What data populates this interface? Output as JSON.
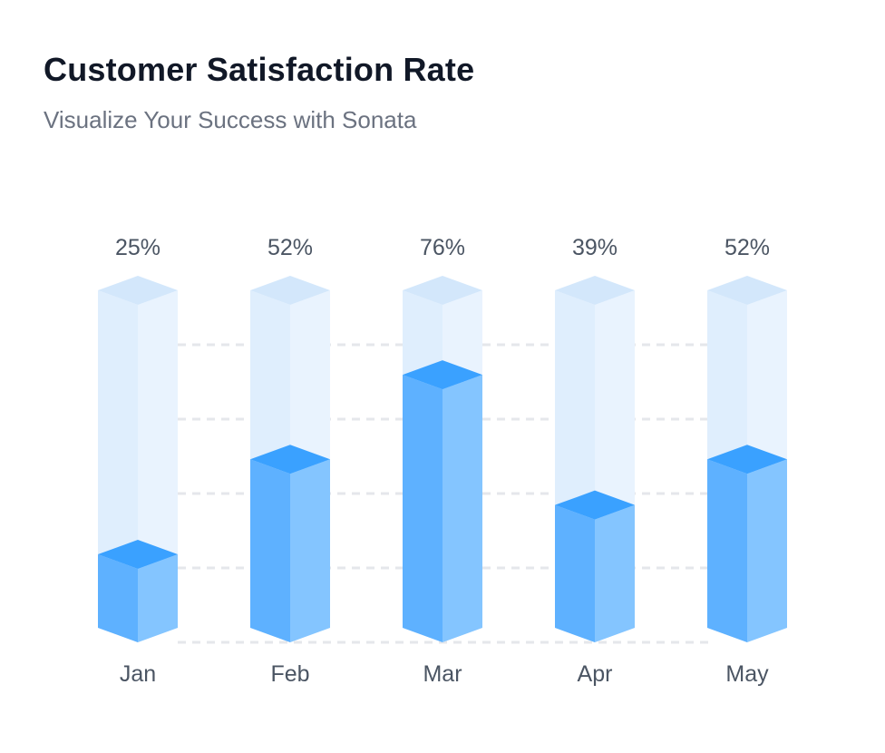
{
  "header": {
    "title": "Customer Satisfaction Rate",
    "subtitle": "Visualize Your Success with Sonata"
  },
  "colors": {
    "bar_front": "#5eb1ff",
    "bar_side": "#84c5ff",
    "bar_top": "#3aa1ff",
    "ghost_front": "#dfeefd",
    "ghost_side": "#e9f3fe",
    "ghost_top": "#d3e7fb",
    "grid": "#e5e7eb",
    "label": "#4b5563"
  },
  "chart_data": {
    "type": "bar",
    "categories": [
      "Jan",
      "Feb",
      "Mar",
      "Apr",
      "May"
    ],
    "values": [
      25,
      52,
      76,
      39,
      52
    ],
    "value_labels": [
      "25%",
      "52%",
      "76%",
      "39%",
      "52%"
    ],
    "ylim": [
      0,
      100
    ],
    "grid": true,
    "gridline_count": 5
  }
}
